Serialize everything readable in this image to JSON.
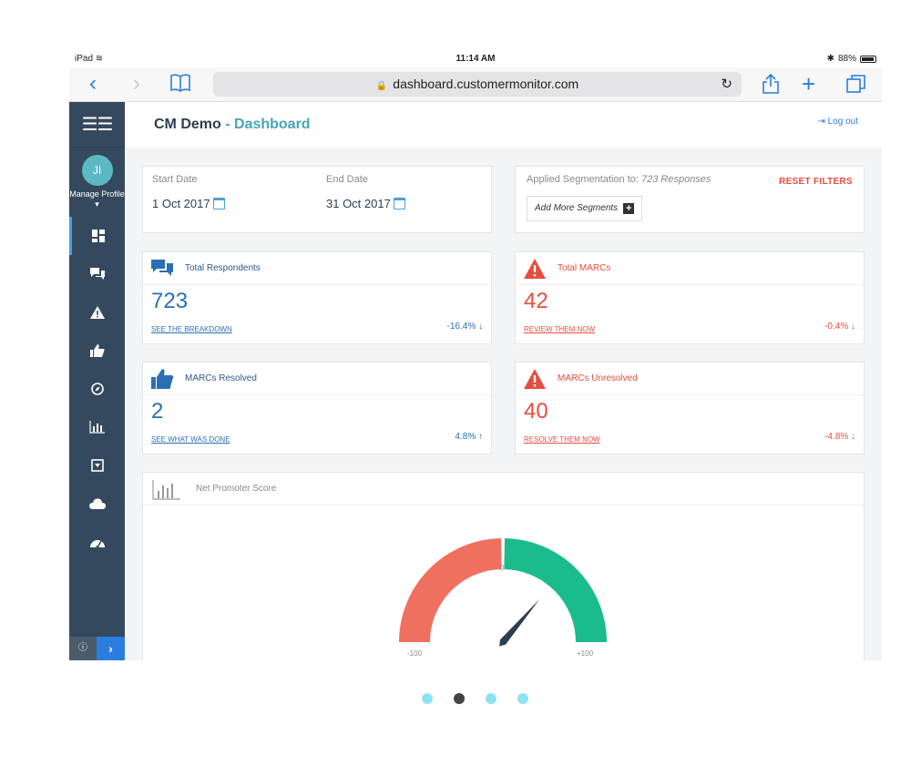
{
  "status_bar": {
    "device": "iPad",
    "time": "11:14 AM",
    "battery": "88%"
  },
  "browser": {
    "url": "dashboard.customermonitor.com"
  },
  "sidebar": {
    "avatar_initials": "JI",
    "manage_profile": "Manage Profile",
    "items": [
      "dashboard",
      "comments",
      "alerts",
      "thumbs-up",
      "compass",
      "reports",
      "download",
      "cloud",
      "gauge"
    ]
  },
  "header": {
    "app_name": "CM Demo",
    "separator": " - ",
    "page_name": "Dashboard",
    "logout_label": "Log out"
  },
  "dates": {
    "start_label": "Start Date",
    "start_value": "1 Oct 2017",
    "end_label": "End Date",
    "end_value": "31 Oct 2017"
  },
  "segmentation": {
    "label": "Applied Segmentation to:",
    "responses": "723 Responses",
    "reset_label": "RESET FILTERS",
    "add_label": "Add More Segments"
  },
  "stats": [
    {
      "title": "Total Respondents",
      "value": "723",
      "link": "SEE THE BREAKDOWN",
      "change": "-16.4%"
    },
    {
      "title": "Total MARCs",
      "value": "42",
      "link": "REVIEW THEM NOW",
      "change": "-0.4%"
    },
    {
      "title": "MARCs Resolved",
      "value": "2",
      "link": "SEE WHAT WAS DONE",
      "change": "4.8%"
    },
    {
      "title": "MARCs Unresolved",
      "value": "40",
      "link": "RESOLVE THEM NOW",
      "change": "-4.8%"
    }
  ],
  "nps": {
    "title": "Net Promoter Score",
    "min_label": "-100",
    "mid_label": "0",
    "max_label": "+100",
    "value": 45
  },
  "colors": {
    "sidebar": "#34495e",
    "blue": "#2a6fb5",
    "red": "#e74c3c",
    "gauge_red": "#f07060",
    "gauge_green": "#1abc8c"
  },
  "pager": {
    "count": 4,
    "active_index": 1
  }
}
